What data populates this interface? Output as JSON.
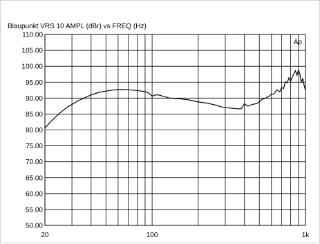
{
  "chart_data": {
    "type": "line",
    "title": "Blaupunkt   VRS 10 AMPL (dBr) vs  FREQ (Hz)",
    "xlabel": "",
    "ylabel": "",
    "xscale": "log",
    "xlim": [
      20,
      1000
    ],
    "ylim": [
      50,
      110
    ],
    "grid": true,
    "legend": "Ap",
    "legend_position": "top-right",
    "colors": {
      "line": "#000000",
      "grid": "#000000",
      "background": "#ffffff"
    },
    "y_ticks": [
      50,
      55,
      60,
      65,
      70,
      75,
      80,
      85,
      90,
      95,
      100,
      105,
      110
    ],
    "y_tick_labels": [
      "50.00",
      "55.00",
      "60.00",
      "65.00",
      "70.00",
      "75.00",
      "80.00",
      "85.00",
      "90.00",
      "95.00",
      "100.00",
      "105.00",
      "110.00"
    ],
    "x_grid": [
      20,
      30,
      40,
      50,
      60,
      70,
      80,
      90,
      100,
      200,
      300,
      400,
      500,
      600,
      700,
      800,
      900,
      1000
    ],
    "x_tick_labels": [
      {
        "value": 20,
        "label": "20"
      },
      {
        "value": 100,
        "label": "100"
      },
      {
        "value": 1000,
        "label": "1k"
      }
    ],
    "series": [
      {
        "x": [
          20,
          22,
          25,
          28,
          30,
          33,
          36,
          40,
          45,
          50,
          55,
          60,
          65,
          70,
          75,
          80,
          85,
          90,
          95,
          98,
          100,
          105,
          110,
          120,
          130,
          150,
          170,
          200,
          230,
          260,
          280,
          300,
          320,
          350,
          380,
          400,
          420,
          450,
          480,
          500,
          520,
          550,
          580,
          600,
          620,
          650,
          680,
          700,
          720,
          740,
          760,
          780,
          800,
          820,
          840,
          860,
          880,
          900,
          920,
          940,
          960,
          980,
          1000
        ],
        "y": [
          80.6,
          82.8,
          85.3,
          87.2,
          88.0,
          89.2,
          90.0,
          91.0,
          91.8,
          92.2,
          92.5,
          92.7,
          92.7,
          92.6,
          92.5,
          92.4,
          92.2,
          92.0,
          91.6,
          91.0,
          90.6,
          91.0,
          91.0,
          90.5,
          90.0,
          89.8,
          89.5,
          88.8,
          88.4,
          87.8,
          87.3,
          87.0,
          86.9,
          86.7,
          86.6,
          88.2,
          87.5,
          88.0,
          88.3,
          88.8,
          89.6,
          90.0,
          90.6,
          91.3,
          91.2,
          92.6,
          92.0,
          93.3,
          93.0,
          95.2,
          94.8,
          96.4,
          95.3,
          96.6,
          97.6,
          98.6,
          97.2,
          98.8,
          97.5,
          94.8,
          96.2,
          94.0,
          92.4
        ]
      }
    ]
  }
}
